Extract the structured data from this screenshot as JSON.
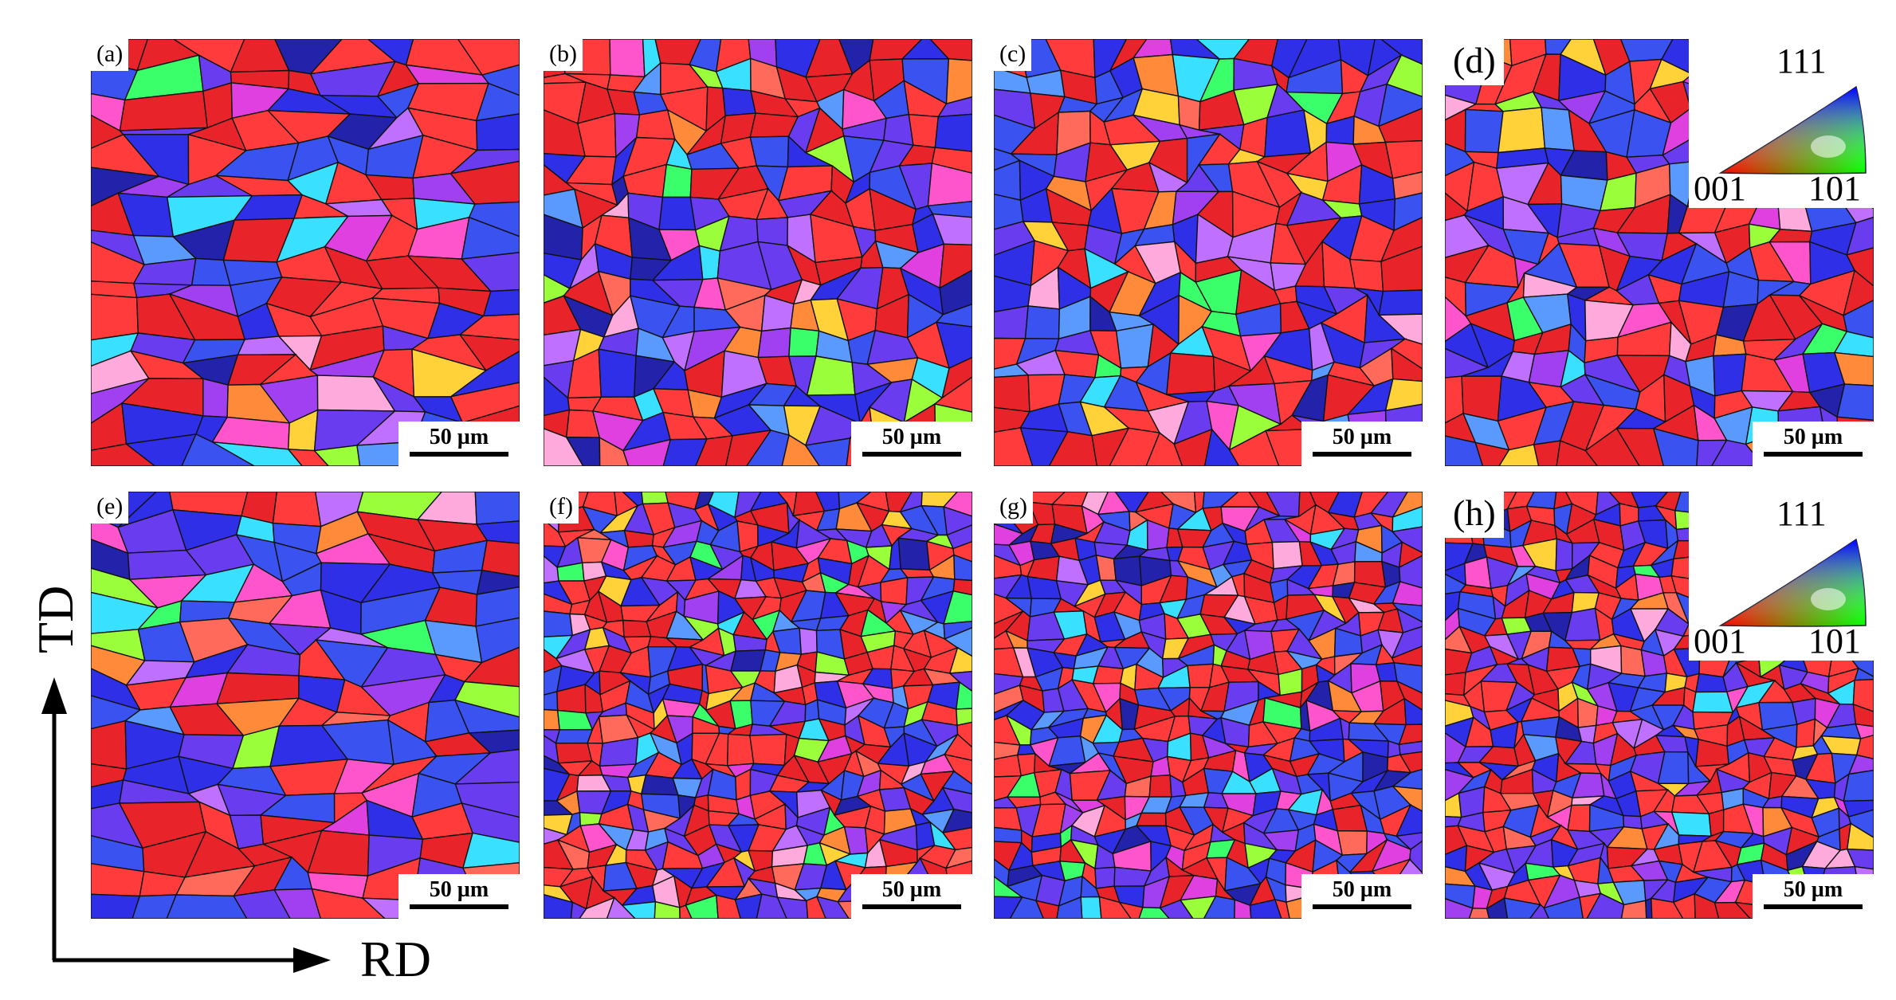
{
  "panels": [
    {
      "id": "a",
      "label": "(a)",
      "scale": "50 µm",
      "legend": false,
      "style": "coarse"
    },
    {
      "id": "b",
      "label": "(b)",
      "scale": "50 µm",
      "legend": false,
      "style": "fine"
    },
    {
      "id": "c",
      "label": "(c)",
      "scale": "50 µm",
      "legend": false,
      "style": "fine"
    },
    {
      "id": "d",
      "label": "(d)",
      "scale": "50 µm",
      "legend": true,
      "style": "fine"
    },
    {
      "id": "e",
      "label": "(e)",
      "scale": "50 µm",
      "legend": false,
      "style": "coarse"
    },
    {
      "id": "f",
      "label": "(f)",
      "scale": "50 µm",
      "legend": false,
      "style": "finer"
    },
    {
      "id": "g",
      "label": "(g)",
      "scale": "50 µm",
      "legend": false,
      "style": "finer"
    },
    {
      "id": "h",
      "label": "(h)",
      "scale": "50 µm",
      "legend": true,
      "style": "finer"
    }
  ],
  "legend": {
    "top": "111",
    "left": "001",
    "right": "101"
  },
  "axes": {
    "vertical": "TD",
    "horizontal": "RD"
  },
  "palette": [
    "#e8232a",
    "#ff3b3b",
    "#2f2fe8",
    "#3a52f0",
    "#6a3cf0",
    "#a040f0",
    "#e040e0",
    "#ff55cc",
    "#ff8a3a",
    "#ff6a5a",
    "#9aff3a",
    "#3aff6a",
    "#3ae0ff",
    "#5a9aff",
    "#ffd23a",
    "#ffaadd",
    "#c070ff",
    "#2222aa"
  ]
}
